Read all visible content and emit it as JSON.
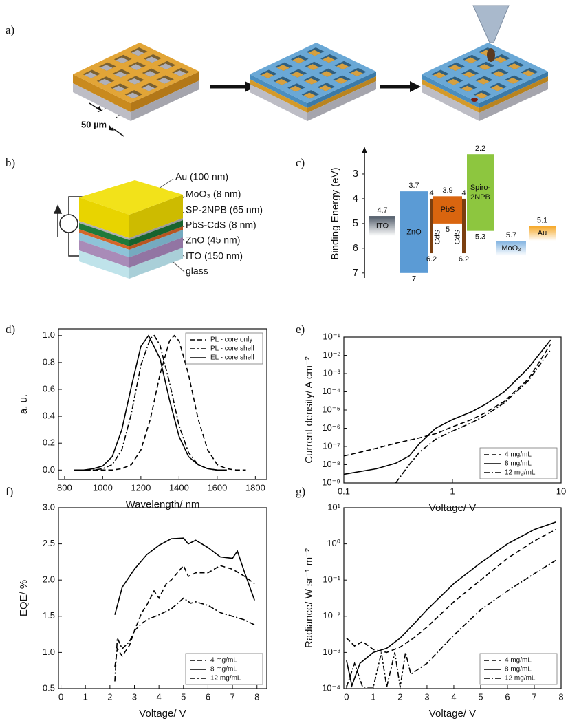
{
  "panel_labels": [
    "a)",
    "b)",
    "c)",
    "d)",
    "e)",
    "f)",
    "g)"
  ],
  "diagram_a": {
    "scale_label": "50 µm"
  },
  "diagram_b": {
    "layers": [
      "Au (100 nm)",
      "MoO₃ (8 nm)",
      "SP-2NPB (65 nm)",
      "PbS-CdS (8 nm)",
      "ZnO (45 nm)",
      "ITO (150 nm)",
      "glass"
    ]
  },
  "chart_data": [
    {
      "type": "band",
      "ylabel": "Binding Energy (eV)",
      "ylim": [
        2,
        7.2
      ],
      "yticks": [
        3,
        4,
        5,
        6,
        7
      ],
      "y_inverted": true,
      "layers": [
        {
          "name": [
            "ITO"
          ],
          "color": "#4d5866",
          "text_color": "#ffffff",
          "gradient": true,
          "top": 4.7,
          "bottom": 5.5,
          "label_top": true,
          "label_bottom": false
        },
        {
          "name": [
            "ZnO"
          ],
          "color": "#5b9bd5",
          "text_color": "#1a1a1a",
          "gradient": false,
          "top": 3.7,
          "bottom": 7,
          "label_top": true,
          "label_bottom": true
        },
        {
          "name": [
            "CdS"
          ],
          "color": "#7b3f10",
          "text_color": "#1a1a1a",
          "gradient": false,
          "top": 4,
          "bottom": 6.2,
          "label_top": true,
          "label_bottom": true
        },
        {
          "name": [
            "PbS"
          ],
          "color": "#d9650f",
          "text_color": "#1a1a1a",
          "gradient": false,
          "top": 3.9,
          "bottom": 5,
          "label_top": true,
          "label_bottom": true
        },
        {
          "name": [
            "CdS"
          ],
          "color": "#7b3f10",
          "text_color": "#1a1a1a",
          "gradient": false,
          "top": 4,
          "bottom": 6.2,
          "label_top": true,
          "label_bottom": true
        },
        {
          "name": [
            "Spiro-",
            "2NPB"
          ],
          "color": "#8dc63f",
          "text_color": "#1a1a1a",
          "gradient": false,
          "top": 2.2,
          "bottom": 5.3,
          "label_top": true,
          "label_bottom": true
        },
        {
          "name": [
            "MoO₃"
          ],
          "color": "#7fb2e0",
          "text_color": "#1a1a1a",
          "gradient": true,
          "top": 5.7,
          "bottom": 6.3,
          "label_top": true,
          "label_bottom": false
        },
        {
          "name": [
            "Au"
          ],
          "color": "#f5a623",
          "text_color": "#1a1a1a",
          "gradient": true,
          "top": 5.1,
          "bottom": 5.7,
          "label_top": true,
          "label_bottom": false
        }
      ]
    },
    {
      "type": "line",
      "xlabel": "Wavelength/ nm",
      "ylabel": "a. u.",
      "xlog": false,
      "ylog": false,
      "legend": "upper right",
      "xlim": [
        768,
        1860
      ],
      "xticks": [
        800,
        1000,
        1200,
        1400,
        1600,
        1800
      ],
      "ylim": [
        -0.07,
        1.05
      ],
      "yticks": [
        {
          "value": 0,
          "label": "0.0"
        },
        0.2,
        0.4,
        0.6,
        0.8,
        {
          "value": 1,
          "label": "1.0"
        }
      ],
      "series": [
        {
          "name": "PL - core only",
          "color": "#000000",
          "linestyle": "dashed",
          "x": [
            950,
            1000,
            1050,
            1100,
            1150,
            1200,
            1250,
            1300,
            1350,
            1375,
            1400,
            1450,
            1500,
            1550,
            1600,
            1650,
            1700,
            1750
          ],
          "values": [
            0,
            0,
            0,
            0.01,
            0.04,
            0.15,
            0.38,
            0.71,
            0.96,
            1,
            0.96,
            0.71,
            0.38,
            0.15,
            0.04,
            0.01,
            0,
            0
          ]
        },
        {
          "name": "PL - core shell",
          "color": "#000000",
          "linestyle": "dashdot",
          "x": [
            850,
            900,
            950,
            1000,
            1050,
            1100,
            1150,
            1200,
            1250,
            1270,
            1300,
            1350,
            1400,
            1450,
            1500,
            1550,
            1600,
            1650
          ],
          "values": [
            0,
            0,
            0,
            0.01,
            0.04,
            0.15,
            0.42,
            0.78,
            0.98,
            1,
            0.93,
            0.65,
            0.33,
            0.13,
            0.04,
            0.01,
            0,
            0
          ]
        },
        {
          "name": "EL - core shell",
          "color": "#000000",
          "linestyle": "solid",
          "x": [
            850,
            900,
            950,
            1000,
            1050,
            1100,
            1150,
            1200,
            1240,
            1300,
            1350,
            1400,
            1450,
            1500,
            1550,
            1600,
            1650
          ],
          "values": [
            0,
            0,
            0.01,
            0.03,
            0.1,
            0.3,
            0.62,
            0.92,
            1,
            0.83,
            0.52,
            0.25,
            0.1,
            0.04,
            0.01,
            0,
            0
          ]
        }
      ]
    },
    {
      "type": "line",
      "xlabel": "Voltage/ V",
      "ylabel": "Current density/ A cm⁻²",
      "xlog": true,
      "ylog": true,
      "legend": "lower right",
      "xlim": [
        0.1,
        10
      ],
      "xticks": [
        0.1,
        1,
        10
      ],
      "ylim": [
        1e-09,
        0.1
      ],
      "yticks": [
        {
          "value": 1e-09,
          "label": "10⁻⁹"
        },
        {
          "value": 1e-08,
          "label": "10⁻⁸"
        },
        {
          "value": 1e-07,
          "label": "10⁻⁷"
        },
        {
          "value": 1e-06,
          "label": "10⁻⁶"
        },
        {
          "value": 1e-05,
          "label": "10⁻⁵"
        },
        {
          "value": 0.0001,
          "label": "10⁻⁴"
        },
        {
          "value": 0.001,
          "label": "10⁻³"
        },
        {
          "value": 0.01,
          "label": "10⁻²"
        },
        {
          "value": 0.1,
          "label": "10⁻¹"
        }
      ],
      "series": [
        {
          "name": "4 mg/mL",
          "color": "#000000",
          "linestyle": "dashed",
          "x": [
            0.1,
            0.2,
            0.3,
            0.5,
            0.7,
            1,
            1.5,
            2,
            3,
            5,
            8
          ],
          "values": [
            3e-08,
            8e-08,
            1.5e-07,
            3e-07,
            5e-07,
            1.2e-06,
            3e-06,
            7e-06,
            3e-05,
            0.0005,
            0.04
          ]
        },
        {
          "name": "8 mg/mL",
          "color": "#000000",
          "linestyle": "solid",
          "x": [
            0.1,
            0.2,
            0.3,
            0.4,
            0.5,
            0.7,
            1,
            1.5,
            2,
            3,
            5,
            8
          ],
          "values": [
            3e-09,
            6e-09,
            1.2e-08,
            3e-08,
            1.5e-07,
            1e-06,
            3e-06,
            8e-06,
            2e-05,
            0.0001,
            0.002,
            0.07
          ]
        },
        {
          "name": "12 mg/mL",
          "color": "#000000",
          "linestyle": "dashdot",
          "x": [
            0.3,
            0.4,
            0.5,
            0.7,
            1,
            1.5,
            2,
            3,
            5,
            8
          ],
          "values": [
            1e-09,
            1e-08,
            5e-08,
            2.5e-07,
            7e-07,
            2e-06,
            5e-06,
            2.5e-05,
            0.0004,
            0.02
          ]
        }
      ]
    },
    {
      "type": "line",
      "xlabel": "Voltage/ V",
      "ylabel": "EQE/ %",
      "xlog": false,
      "ylog": false,
      "legend": "lower right",
      "xlim": [
        -0.1,
        8.4
      ],
      "xticks": [
        0,
        1,
        2,
        3,
        4,
        5,
        6,
        7,
        8
      ],
      "ylim": [
        0.5,
        3
      ],
      "yticks": [
        0.5,
        {
          "value": 1,
          "label": "1.0"
        },
        1.5,
        {
          "value": 2,
          "label": "2.0"
        },
        2.5,
        {
          "value": 3,
          "label": "3.0"
        }
      ],
      "series": [
        {
          "name": "4 mg/mL",
          "color": "#000000",
          "linestyle": "dashed",
          "x": [
            2.2,
            2.3,
            2.5,
            2.8,
            3,
            3.3,
            3.5,
            3.8,
            4,
            4.3,
            4.5,
            5,
            5.2,
            5.5,
            6,
            6.5,
            7,
            7.5,
            7.9
          ],
          "values": [
            0.8,
            1.05,
            0.95,
            1.1,
            1.3,
            1.55,
            1.65,
            1.85,
            1.75,
            1.95,
            2,
            2.2,
            2.05,
            2.1,
            2.1,
            2.2,
            2.15,
            2.05,
            1.95
          ]
        },
        {
          "name": "8 mg/mL",
          "color": "#000000",
          "linestyle": "solid",
          "x": [
            2.2,
            2.5,
            3,
            3.5,
            4,
            4.5,
            5,
            5.2,
            5.5,
            6,
            6.5,
            7,
            7.2,
            7.5,
            7.9
          ],
          "values": [
            1.52,
            1.9,
            2.15,
            2.35,
            2.48,
            2.57,
            2.58,
            2.5,
            2.55,
            2.45,
            2.32,
            2.3,
            2.4,
            2.1,
            1.72
          ]
        },
        {
          "name": "12 mg/mL",
          "color": "#000000",
          "linestyle": "dashdot",
          "x": [
            2.2,
            2.3,
            2.5,
            2.8,
            3,
            3.3,
            3.5,
            4,
            4.5,
            5,
            5.3,
            5.5,
            6,
            6.5,
            7,
            7.5,
            7.9
          ],
          "values": [
            0.6,
            1.2,
            1.05,
            1.15,
            1.3,
            1.4,
            1.45,
            1.52,
            1.6,
            1.75,
            1.68,
            1.7,
            1.65,
            1.55,
            1.5,
            1.45,
            1.38
          ]
        }
      ]
    },
    {
      "type": "line",
      "xlabel": "Voltage/ V",
      "ylabel": "Radiance/ W sr⁻¹ m⁻²",
      "xlog": false,
      "ylog": true,
      "legend": "lower right",
      "xlim": [
        -0.1,
        8
      ],
      "xticks": [
        0,
        1,
        2,
        3,
        4,
        5,
        6,
        7,
        8
      ],
      "ylim": [
        0.0001,
        10
      ],
      "yticks": [
        {
          "value": 0.0001,
          "label": "10⁻⁴"
        },
        {
          "value": 0.001,
          "label": "10⁻³"
        },
        {
          "value": 0.01,
          "label": "10⁻²"
        },
        {
          "value": 0.1,
          "label": "10⁻¹"
        },
        {
          "value": 1,
          "label": "10⁰"
        },
        {
          "value": 10,
          "label": "10¹"
        }
      ],
      "series": [
        {
          "name": "4 mg/mL",
          "color": "#000000",
          "linestyle": "dashed",
          "x": [
            0,
            0.3,
            0.6,
            1,
            1.5,
            2,
            2.5,
            3,
            4,
            5,
            6,
            7,
            7.8
          ],
          "values": [
            0.0025,
            0.0015,
            0.002,
            0.0012,
            0.001,
            0.0014,
            0.0025,
            0.005,
            0.025,
            0.1,
            0.4,
            1.2,
            2.5
          ]
        },
        {
          "name": "8 mg/mL",
          "color": "#000000",
          "linestyle": "solid",
          "x": [
            0,
            0.2,
            0.5,
            1,
            1.5,
            2,
            2.5,
            3,
            4,
            5,
            6,
            7,
            7.8
          ],
          "values": [
            0.0006,
            0.00012,
            0.0005,
            0.001,
            0.0013,
            0.0025,
            0.006,
            0.015,
            0.08,
            0.3,
            1,
            2.5,
            4
          ]
        },
        {
          "name": "12 mg/mL",
          "color": "#000000",
          "linestyle": "dashdot",
          "x": [
            0,
            0.3,
            0.6,
            1,
            1.3,
            1.5,
            1.8,
            2,
            2.2,
            2.4,
            3,
            4,
            5,
            6,
            7,
            7.8
          ],
          "values": [
            0.00011,
            0.0005,
            0.00011,
            0.00011,
            0.001,
            0.00011,
            0.001,
            0.00011,
            0.001,
            0.00025,
            0.0005,
            0.003,
            0.015,
            0.05,
            0.15,
            0.35
          ]
        }
      ]
    }
  ]
}
